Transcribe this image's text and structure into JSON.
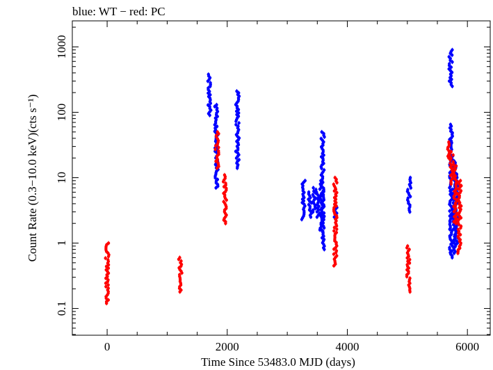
{
  "chart_data": {
    "type": "scatter",
    "title": "blue: WT − red: PC",
    "xlabel": "Time Since 53483.0 MJD (days)",
    "ylabel": "Count Rate (0.3−10.0 keV)(cts s⁻¹)",
    "xlim": [
      -580,
      6380
    ],
    "ylim": [
      0.039,
      2500
    ],
    "y_scale": "log",
    "grid": false,
    "x_ticks": [
      0,
      2000,
      4000,
      6000
    ],
    "x_tick_labels": [
      "0",
      "2000",
      "4000",
      "6000"
    ],
    "y_ticks": [
      0.1,
      1,
      10,
      100,
      1000
    ],
    "y_tick_labels": [
      "0.1",
      "1",
      "10",
      "100",
      "1000"
    ],
    "series": [
      {
        "name": "WT",
        "color": "#0000ff",
        "clusters": [
          {
            "x": 1700,
            "ymin": 90,
            "ymax": 380
          },
          {
            "x": 1820,
            "ymin": 7,
            "ymax": 130
          },
          {
            "x": 2170,
            "ymin": 14,
            "ymax": 210
          },
          {
            "x": 3270,
            "ymin": 2.3,
            "ymax": 9
          },
          {
            "x": 3380,
            "ymin": 2.5,
            "ymax": 6
          },
          {
            "x": 3450,
            "ymin": 3,
            "ymax": 7
          },
          {
            "x": 3510,
            "ymin": 2.5,
            "ymax": 6
          },
          {
            "x": 3570,
            "ymin": 1.5,
            "ymax": 9
          },
          {
            "x": 3590,
            "ymin": 0.8,
            "ymax": 50
          },
          {
            "x": 3800,
            "ymin": 2.5,
            "ymax": 4
          },
          {
            "x": 5030,
            "ymin": 3,
            "ymax": 10
          },
          {
            "x": 5720,
            "ymin": 250,
            "ymax": 900
          },
          {
            "x": 5730,
            "ymin": 0.6,
            "ymax": 65
          },
          {
            "x": 5780,
            "ymin": 0.7,
            "ymax": 18
          },
          {
            "x": 5820,
            "ymin": 1,
            "ymax": 12
          }
        ]
      },
      {
        "name": "PC",
        "color": "#ff0000",
        "clusters": [
          {
            "x": 0,
            "ymin": 0.12,
            "ymax": 1.0
          },
          {
            "x": 1220,
            "ymin": 0.18,
            "ymax": 0.6
          },
          {
            "x": 1830,
            "ymin": 14,
            "ymax": 50
          },
          {
            "x": 1960,
            "ymin": 2,
            "ymax": 11
          },
          {
            "x": 3800,
            "ymin": 0.45,
            "ymax": 10
          },
          {
            "x": 5020,
            "ymin": 0.18,
            "ymax": 0.9
          },
          {
            "x": 5690,
            "ymin": 20,
            "ymax": 35
          },
          {
            "x": 5740,
            "ymin": 8,
            "ymax": 25
          },
          {
            "x": 5800,
            "ymin": 2,
            "ymax": 16
          },
          {
            "x": 5870,
            "ymin": 0.7,
            "ymax": 9
          }
        ]
      }
    ]
  }
}
